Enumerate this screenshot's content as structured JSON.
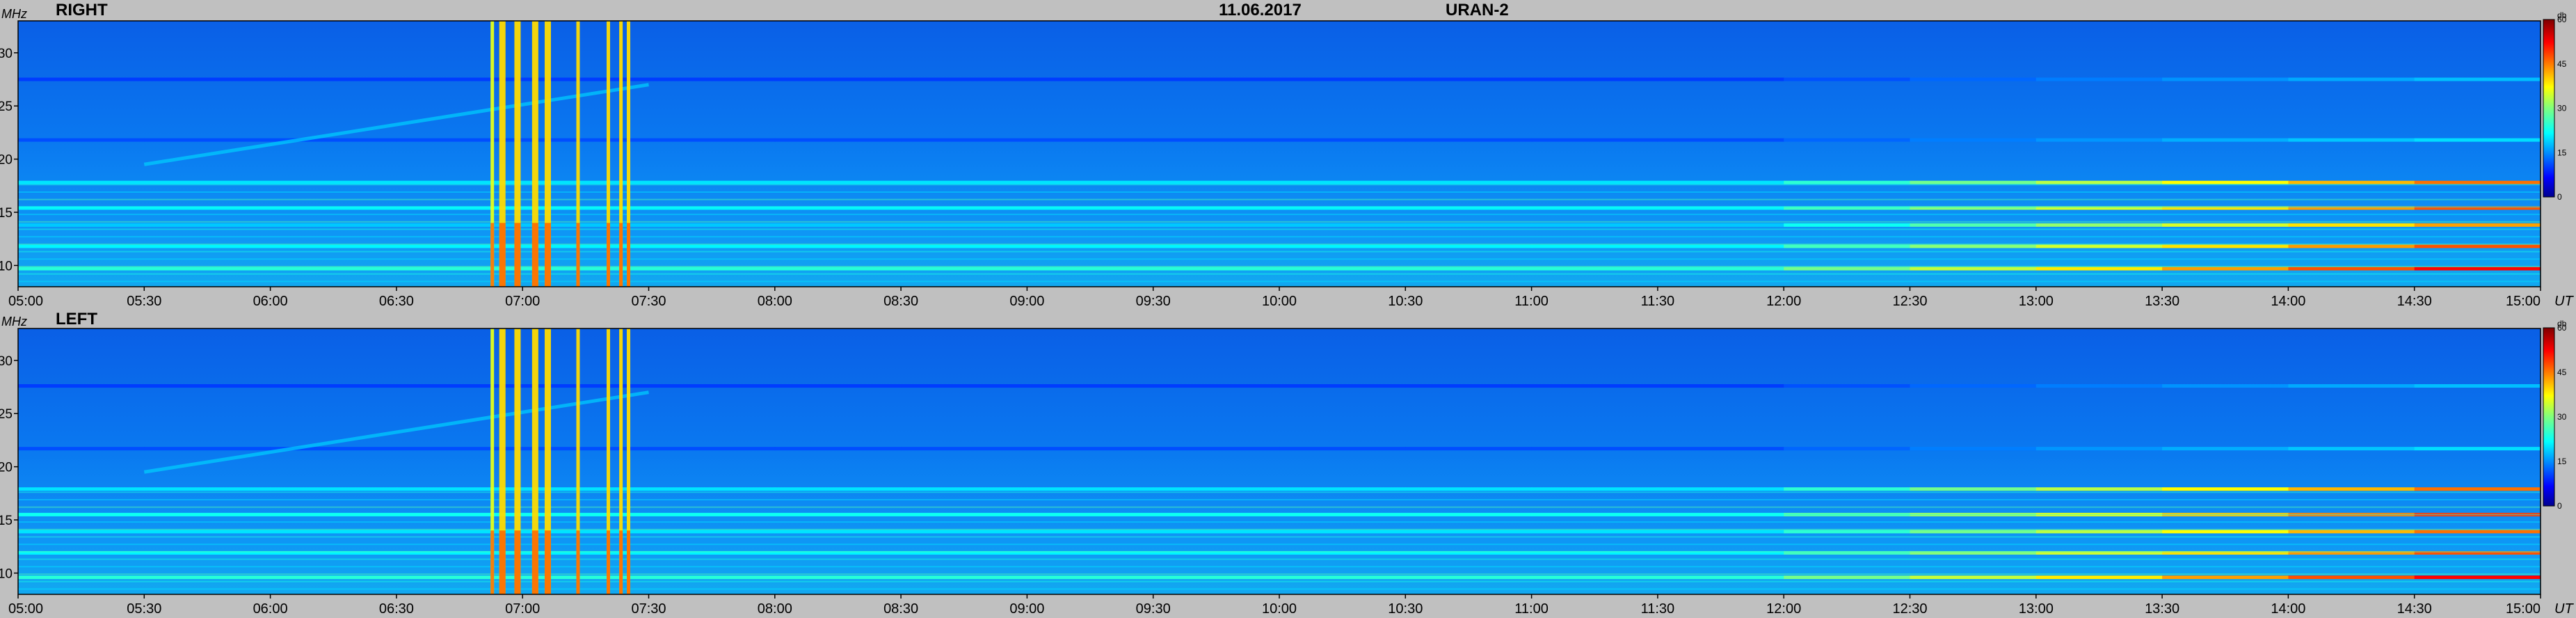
{
  "header": {
    "date": "11.06.2017",
    "instrument": "URAN-2"
  },
  "chart_data": [
    {
      "type": "heatmap",
      "title": "RIGHT",
      "ylabel": "MHz",
      "xlabel": "UT",
      "x_ticks": [
        "05:00",
        "05:30",
        "06:00",
        "06:30",
        "07:00",
        "07:30",
        "08:00",
        "08:30",
        "09:00",
        "09:30",
        "10:00",
        "10:30",
        "11:00",
        "11:30",
        "12:00",
        "12:30",
        "13:00",
        "13:30",
        "14:00",
        "14:30",
        "15:00"
      ],
      "y_ticks": [
        10,
        15,
        20,
        25,
        30
      ],
      "ylim": [
        8,
        33
      ],
      "colorbar": {
        "unit": "db",
        "ticks": [
          0,
          15,
          30,
          45,
          60
        ],
        "range": [
          0,
          60
        ]
      },
      "bursts_ut_hours": [
        6.88,
        6.92,
        6.98,
        7.05,
        7.1,
        7.22,
        7.34,
        7.39,
        7.42
      ],
      "rfi_bands_mhz": [
        {
          "mhz": 9.7,
          "level_db": 45
        },
        {
          "mhz": 11.8,
          "level_db": 40
        },
        {
          "mhz": 13.8,
          "level_db": 35
        },
        {
          "mhz": 15.4,
          "level_db": 40
        },
        {
          "mhz": 17.8,
          "level_db": 38
        },
        {
          "mhz": 21.8,
          "level_db": 22
        },
        {
          "mhz": 27.5,
          "level_db": 20
        }
      ]
    },
    {
      "type": "heatmap",
      "title": "LEFT",
      "ylabel": "MHz",
      "xlabel": "UT",
      "x_ticks": [
        "05:00",
        "05:30",
        "06:00",
        "06:30",
        "07:00",
        "07:30",
        "08:00",
        "08:30",
        "09:00",
        "09:30",
        "10:00",
        "10:30",
        "11:00",
        "11:30",
        "12:00",
        "12:30",
        "13:00",
        "13:30",
        "14:00",
        "14:30",
        "15:00"
      ],
      "y_ticks": [
        10,
        15,
        20,
        25,
        30
      ],
      "ylim": [
        8,
        33
      ],
      "colorbar": {
        "unit": "db",
        "ticks": [
          0,
          15,
          30,
          45,
          60
        ],
        "range": [
          0,
          60
        ]
      },
      "bursts_ut_hours": [
        6.88,
        6.92,
        6.98,
        7.05,
        7.1,
        7.22,
        7.34,
        7.39,
        7.42
      ],
      "rfi_bands_mhz": [
        {
          "mhz": 9.6,
          "level_db": 45
        },
        {
          "mhz": 11.9,
          "level_db": 40
        },
        {
          "mhz": 13.9,
          "level_db": 38
        },
        {
          "mhz": 15.5,
          "level_db": 42
        },
        {
          "mhz": 17.9,
          "level_db": 38
        },
        {
          "mhz": 21.7,
          "level_db": 22
        },
        {
          "mhz": 27.6,
          "level_db": 20
        }
      ]
    }
  ]
}
